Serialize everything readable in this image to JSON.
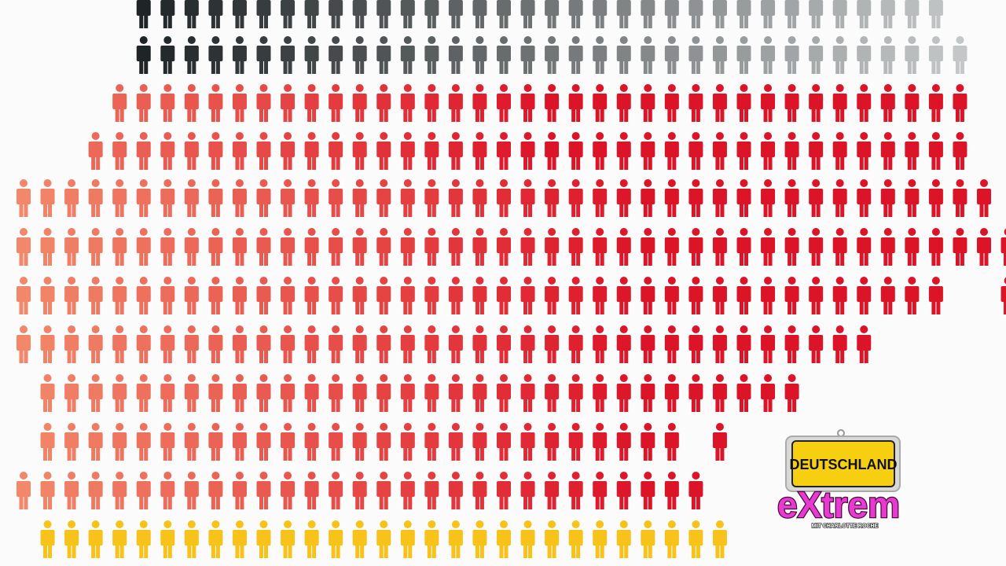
{
  "infographic": {
    "colors": {
      "dark_start": "#1f2426",
      "dark_end": "#c4c7c8",
      "orange_left": "#f2876a",
      "red_right": "#dc1428",
      "yellow": "#f7c21a"
    }
  },
  "logo": {
    "sign_text": "DEUTSCHLAND",
    "title": "eXtrem",
    "subtitle": "MIT CHARLOTTE ROCHE",
    "colors": {
      "sign": "#f6cf10",
      "title": "#e83ad0"
    }
  }
}
